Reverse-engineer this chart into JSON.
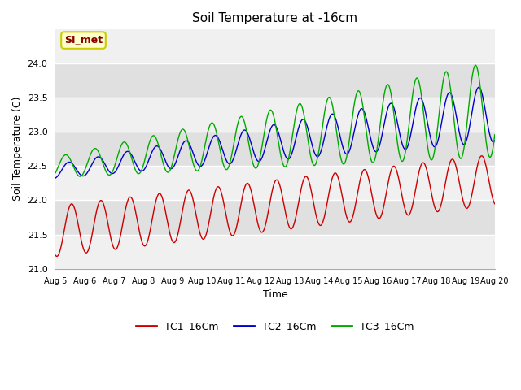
{
  "title": "Soil Temperature at -16cm",
  "xlabel": "Time",
  "ylabel": "Soil Temperature (C)",
  "ylim": [
    21.0,
    24.5
  ],
  "xlim": [
    0,
    360
  ],
  "fig_bg_color": "#ffffff",
  "plot_bg_color": "#e8e8e8",
  "band_color_light": "#f0f0f0",
  "band_color_dark": "#e0e0e0",
  "annotation_text": "SI_met",
  "annotation_bg": "#ffffcc",
  "annotation_border": "#cccc00",
  "annotation_text_color": "#880000",
  "legend_labels": [
    "TC1_16Cm",
    "TC2_16Cm",
    "TC3_16Cm"
  ],
  "line_colors": [
    "#cc0000",
    "#0000cc",
    "#00aa00"
  ],
  "x_tick_labels": [
    "Aug 5",
    "Aug 6",
    "Aug 7",
    "Aug 8",
    "Aug 9",
    "Aug 10",
    "Aug 11",
    "Aug 12",
    "Aug 13",
    "Aug 14",
    "Aug 15",
    "Aug 16",
    "Aug 17",
    "Aug 18",
    "Aug 19",
    "Aug 20"
  ],
  "x_tick_positions": [
    0,
    24,
    48,
    72,
    96,
    120,
    144,
    168,
    192,
    216,
    240,
    264,
    288,
    312,
    336,
    360
  ]
}
